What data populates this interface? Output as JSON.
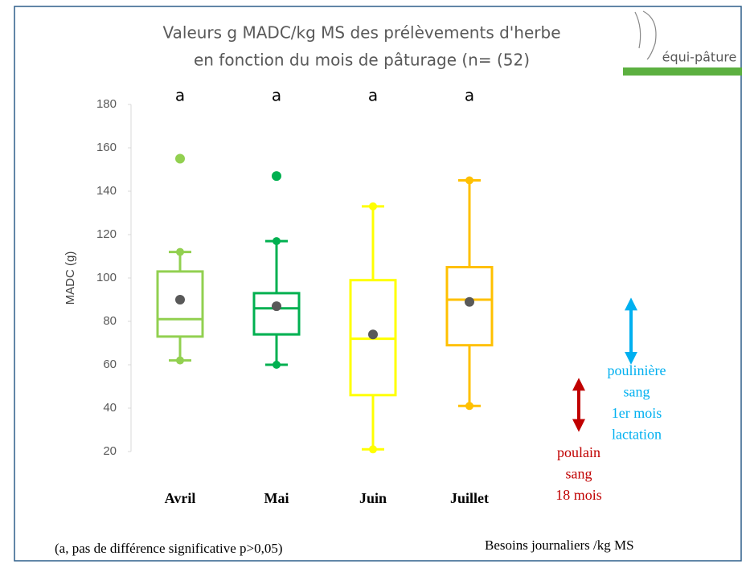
{
  "chart_data": {
    "type": "box",
    "title": [
      "Valeurs g MADC/kg MS des prélèvements d'herbe",
      "en fonction du mois de pâturage (n= (52)"
    ],
    "y_label": "MADC (g)",
    "categories": [
      "Avril",
      "Mai",
      "Juin",
      "Juillet"
    ],
    "colors": [
      "#92d050",
      "#00b050",
      "#ffff00",
      "#ffc000"
    ],
    "whisker_low": [
      62,
      60,
      21,
      41
    ],
    "q1": [
      73,
      74,
      46,
      69
    ],
    "median": [
      81,
      86,
      72,
      90
    ],
    "q3": [
      103,
      93,
      99,
      105
    ],
    "whisker_high": [
      112,
      117,
      133,
      145
    ],
    "mean": [
      90,
      87,
      74,
      89
    ],
    "mean_color": "#595959",
    "outliers": [
      [
        155
      ],
      [
        147
      ],
      [],
      []
    ],
    "letters": [
      "a",
      "a",
      "a",
      "a"
    ],
    "ylim": [
      20,
      180
    ],
    "yticks": [
      20,
      40,
      60,
      80,
      100,
      120,
      140,
      160,
      180
    ],
    "ranges": [
      {
        "label": [
          "poulain",
          "sang",
          "18 mois"
        ],
        "low": 32,
        "high": 51,
        "color": "#c00000"
      },
      {
        "label": [
          "poulinière",
          "sang",
          "1er mois",
          "lactation"
        ],
        "low": 63,
        "high": 88,
        "color": "#00b0f0"
      }
    ],
    "note": "(a, pas de différence significative p>0,05)",
    "range_caption": "Besoins journaliers /kg MS",
    "logo": "équi-pâture"
  }
}
